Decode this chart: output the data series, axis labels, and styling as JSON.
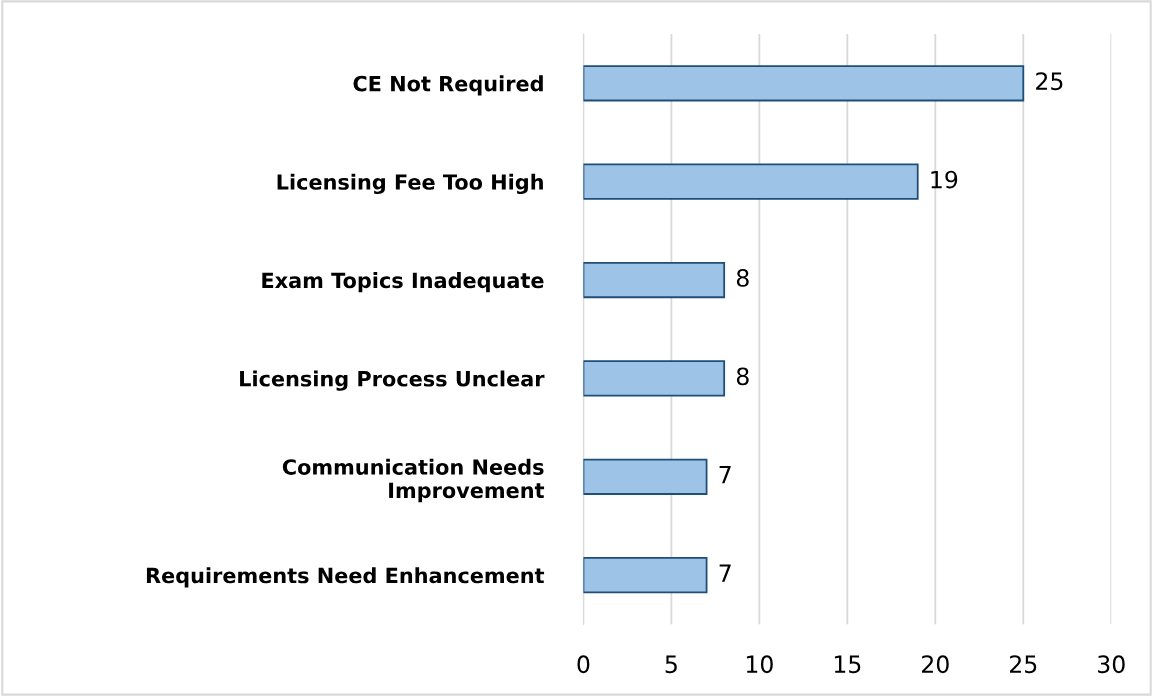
{
  "chart_data": {
    "type": "bar",
    "orientation": "horizontal",
    "categories": [
      "CE Not Required",
      "Licensing Fee Too High",
      "Exam Topics Inadequate",
      "Licensing Process Unclear",
      "Communication Needs\nImprovement",
      "Requirements Need Enhancement"
    ],
    "values": [
      25,
      19,
      8,
      8,
      7,
      7
    ],
    "color": "#9dc3e6",
    "xlim": [
      0,
      30
    ],
    "xticks": [
      0,
      5,
      10,
      15,
      20,
      25,
      30
    ],
    "grid": "x",
    "data_labels": true
  }
}
